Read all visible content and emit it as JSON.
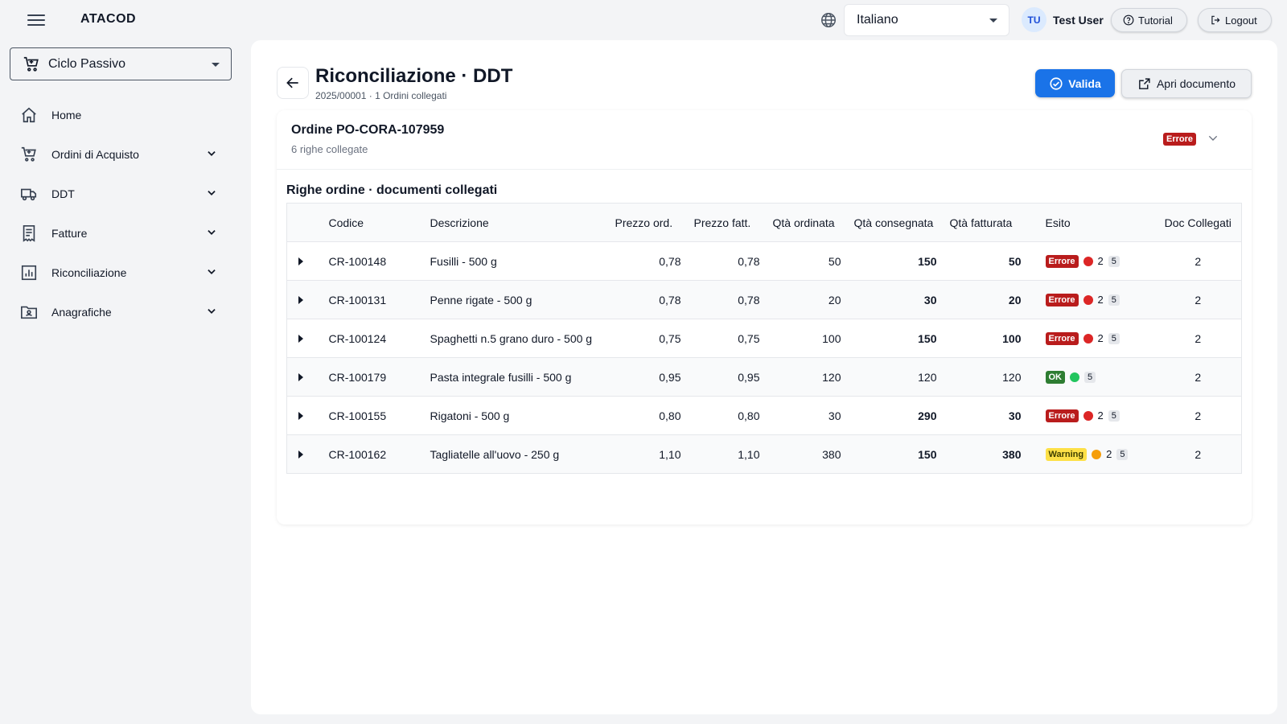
{
  "app": {
    "brand": "ATACOD",
    "language": "Italiano",
    "user": {
      "initials": "TU",
      "name": "Test User"
    },
    "tutorial_label": "Tutorial",
    "logout_label": "Logout"
  },
  "sidebar": {
    "module": "Ciclo Passivo",
    "items": [
      {
        "label": "Home",
        "icon": "home-icon"
      },
      {
        "label": "Ordini di Acquisto",
        "icon": "cart-icon"
      },
      {
        "label": "DDT",
        "icon": "truck-icon"
      },
      {
        "label": "Fatture",
        "icon": "invoice-icon"
      },
      {
        "label": "Riconciliazione",
        "icon": "chart-icon"
      },
      {
        "label": "Anagrafiche",
        "icon": "folder-user-icon"
      }
    ]
  },
  "page": {
    "title": "Riconciliazione · DDT",
    "subtitle": "2025/00001 · 1 Ordini collegati",
    "valida_label": "Valida",
    "apri_label": "Apri documento"
  },
  "order": {
    "title": "Ordine PO-CORA-107959",
    "subtitle": "6 righe collegate",
    "status": "Errore"
  },
  "section_title": "Righe ordine · documenti collegati",
  "table": {
    "headers": [
      "Codice",
      "Descrizione",
      "Prezzo ord.",
      "Prezzo fatt.",
      "Qtà ordinata",
      "Qtà consegnata",
      "Qtà fatturata",
      "Esito",
      "Doc Collegati"
    ],
    "rows": [
      {
        "code": "CR-100148",
        "desc": "Fusilli - 500 g",
        "p_ord": "0,78",
        "p_fatt": "0,78",
        "q_ord": "50",
        "q_cons": "150",
        "q_fatt": "50",
        "esito": "Errore",
        "issues": "2",
        "checks": "5",
        "docs": "2"
      },
      {
        "code": "CR-100131",
        "desc": "Penne rigate - 500 g",
        "p_ord": "0,78",
        "p_fatt": "0,78",
        "q_ord": "20",
        "q_cons": "30",
        "q_fatt": "20",
        "esito": "Errore",
        "issues": "2",
        "checks": "5",
        "docs": "2"
      },
      {
        "code": "CR-100124",
        "desc": "Spaghetti n.5 grano duro - 500 g",
        "p_ord": "0,75",
        "p_fatt": "0,75",
        "q_ord": "100",
        "q_cons": "150",
        "q_fatt": "100",
        "esito": "Errore",
        "issues": "2",
        "checks": "5",
        "docs": "2"
      },
      {
        "code": "CR-100179",
        "desc": "Pasta integrale fusilli - 500 g",
        "p_ord": "0,95",
        "p_fatt": "0,95",
        "q_ord": "120",
        "q_cons": "120",
        "q_fatt": "120",
        "esito": "OK",
        "issues": "",
        "checks": "5",
        "docs": "2"
      },
      {
        "code": "CR-100155",
        "desc": "Rigatoni - 500 g",
        "p_ord": "0,80",
        "p_fatt": "0,80",
        "q_ord": "30",
        "q_cons": "290",
        "q_fatt": "30",
        "esito": "Errore",
        "issues": "2",
        "checks": "5",
        "docs": "2"
      },
      {
        "code": "CR-100162",
        "desc": "Tagliatelle all'uovo - 250 g",
        "p_ord": "1,10",
        "p_fatt": "1,10",
        "q_ord": "380",
        "q_cons": "150",
        "q_fatt": "380",
        "esito": "Warning",
        "issues": "2",
        "checks": "5",
        "docs": "2"
      }
    ]
  },
  "colors": {
    "primary": "#1a73e8",
    "error": "#dc2626",
    "warning": "#d97706",
    "ok": "#22c55e"
  }
}
